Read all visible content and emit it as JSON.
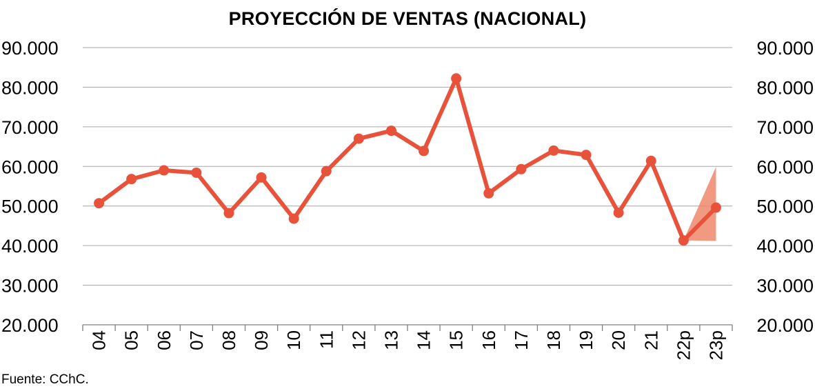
{
  "chart_title": "PROYECCIÓN DE VENTAS (NACIONAL)",
  "source_note": "Fuente:  CChC.",
  "colors": {
    "series": "#e8523a",
    "band": "#f0876b",
    "grid": "#a6a6a6",
    "axis": "#7f7f7f"
  },
  "chart_data": {
    "type": "line",
    "title": "PROYECCIÓN DE VENTAS (NACIONAL)",
    "xlabel": "",
    "ylabel": "",
    "ylim": [
      20000,
      90000
    ],
    "ytick_values": [
      20000,
      30000,
      40000,
      50000,
      60000,
      70000,
      80000,
      90000
    ],
    "ytick_labels": [
      "20.000",
      "30.000",
      "40.000",
      "50.000",
      "60.000",
      "70.000",
      "80.000",
      "90.000"
    ],
    "secondary_y_axis": true,
    "grid": true,
    "categories": [
      "04",
      "05",
      "06",
      "07",
      "08",
      "09",
      "10",
      "11",
      "12",
      "13",
      "14",
      "15",
      "16",
      "17",
      "18",
      "19",
      "20",
      "21",
      "22p",
      "23p"
    ],
    "series": [
      {
        "values": [
          50700,
          56800,
          59000,
          58400,
          48200,
          57200,
          46800,
          58800,
          67000,
          69000,
          63900,
          82200,
          53200,
          59300,
          64000,
          62900,
          48300,
          61400,
          41300,
          49600
        ]
      }
    ],
    "projection_band": {
      "categories": [
        "22p",
        "23p"
      ],
      "lower": [
        41300,
        41200
      ],
      "upper": [
        41300,
        59900
      ]
    }
  }
}
